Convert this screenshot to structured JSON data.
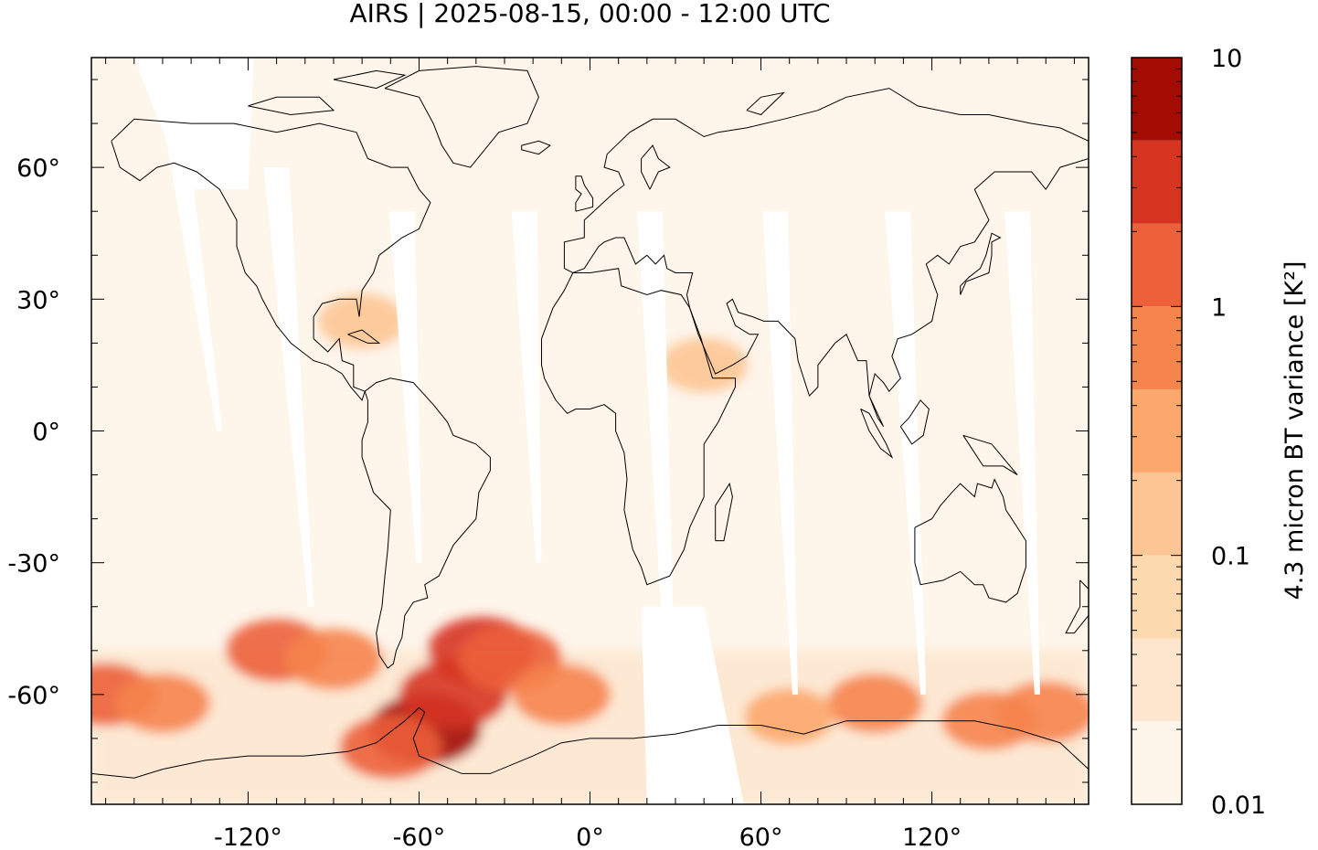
{
  "title": "AIRS | 2025-08-15, 00:00 - 12:00 UTC",
  "map": {
    "projection": "equirectangular",
    "lon_range": [
      -175,
      175
    ],
    "lat_range": [
      -85,
      85
    ],
    "x_ticks": [
      -120,
      -60,
      0,
      60,
      120
    ],
    "x_tick_labels": [
      "-120°",
      "-60°",
      "0°",
      "60°",
      "120°"
    ],
    "y_ticks": [
      60,
      30,
      0,
      -30,
      -60
    ],
    "y_tick_labels": [
      "60°",
      "30°",
      "0°",
      "-30°",
      "-60°"
    ],
    "background_color": "#fef5eb",
    "gap_color": "#ffffff",
    "coastline_color": "#000000"
  },
  "colorbar": {
    "label": "4.3 micron BT variance [K²]",
    "scale": "log",
    "range": [
      0.01,
      10
    ],
    "tick_values": [
      10,
      1,
      0.1,
      0.01
    ],
    "tick_labels": [
      "10",
      "1",
      "0.1",
      "0.01"
    ],
    "levels": [
      0.01,
      0.02,
      0.035,
      0.06,
      0.1,
      0.2,
      0.35,
      0.6,
      1,
      2,
      3.5,
      6,
      10
    ],
    "colors": [
      "#fef5eb",
      "#fde6cd",
      "#fdd9b0",
      "#fdc594",
      "#fca76b",
      "#f6844d",
      "#ec613a",
      "#d63522",
      "#a30c02"
    ]
  },
  "chart_data": {
    "type": "heatmap",
    "title": "AIRS | 2025-08-15, 00:00 - 12:00 UTC",
    "variable": "4.3 micron BT variance [K²]",
    "x_ticks": [
      -120,
      -60,
      0,
      60,
      120
    ],
    "y_ticks": [
      -60,
      -30,
      0,
      30,
      60
    ],
    "color_scale": "log",
    "color_range": [
      0.01,
      10
    ],
    "swath_gaps": [
      {
        "top": [
          -148,
          80
        ],
        "bottom": [
          -130,
          0
        ]
      },
      {
        "top": [
          -110,
          60
        ],
        "bottom": [
          -98,
          -40
        ]
      },
      {
        "top": [
          -66,
          50
        ],
        "bottom": [
          -60,
          -30
        ]
      },
      {
        "top": [
          -23,
          50
        ],
        "bottom": [
          -18,
          -30
        ]
      },
      {
        "top": [
          21,
          50
        ],
        "bottom": [
          30,
          -85
        ]
      },
      {
        "top": [
          65,
          50
        ],
        "bottom": [
          72,
          -60
        ]
      },
      {
        "top": [
          108,
          50
        ],
        "bottom": [
          117,
          -60
        ]
      },
      {
        "top": [
          150,
          50
        ],
        "bottom": [
          157,
          -60
        ]
      }
    ],
    "hotspots": [
      {
        "lon": -58,
        "lat": -68,
        "value": 6
      },
      {
        "lon": -48,
        "lat": -60,
        "value": 3.5
      },
      {
        "lon": -38,
        "lat": -50,
        "value": 3
      },
      {
        "lon": -28,
        "lat": -52,
        "value": 1.8
      },
      {
        "lon": -110,
        "lat": -50,
        "value": 1.2
      },
      {
        "lon": -90,
        "lat": -52,
        "value": 0.8
      },
      {
        "lon": -170,
        "lat": -60,
        "value": 1.2
      },
      {
        "lon": -150,
        "lat": -62,
        "value": 0.6
      },
      {
        "lon": -70,
        "lat": -72,
        "value": 1.5
      },
      {
        "lon": -10,
        "lat": -60,
        "value": 0.9
      },
      {
        "lon": 100,
        "lat": -62,
        "value": 0.6
      },
      {
        "lon": 160,
        "lat": -64,
        "value": 0.9
      },
      {
        "lon": 140,
        "lat": -66,
        "value": 0.5
      },
      {
        "lon": 70,
        "lat": -65,
        "value": 0.3
      },
      {
        "lon": 40,
        "lat": 15,
        "value": 0.2
      },
      {
        "lon": -80,
        "lat": 25,
        "value": 0.2
      }
    ]
  }
}
